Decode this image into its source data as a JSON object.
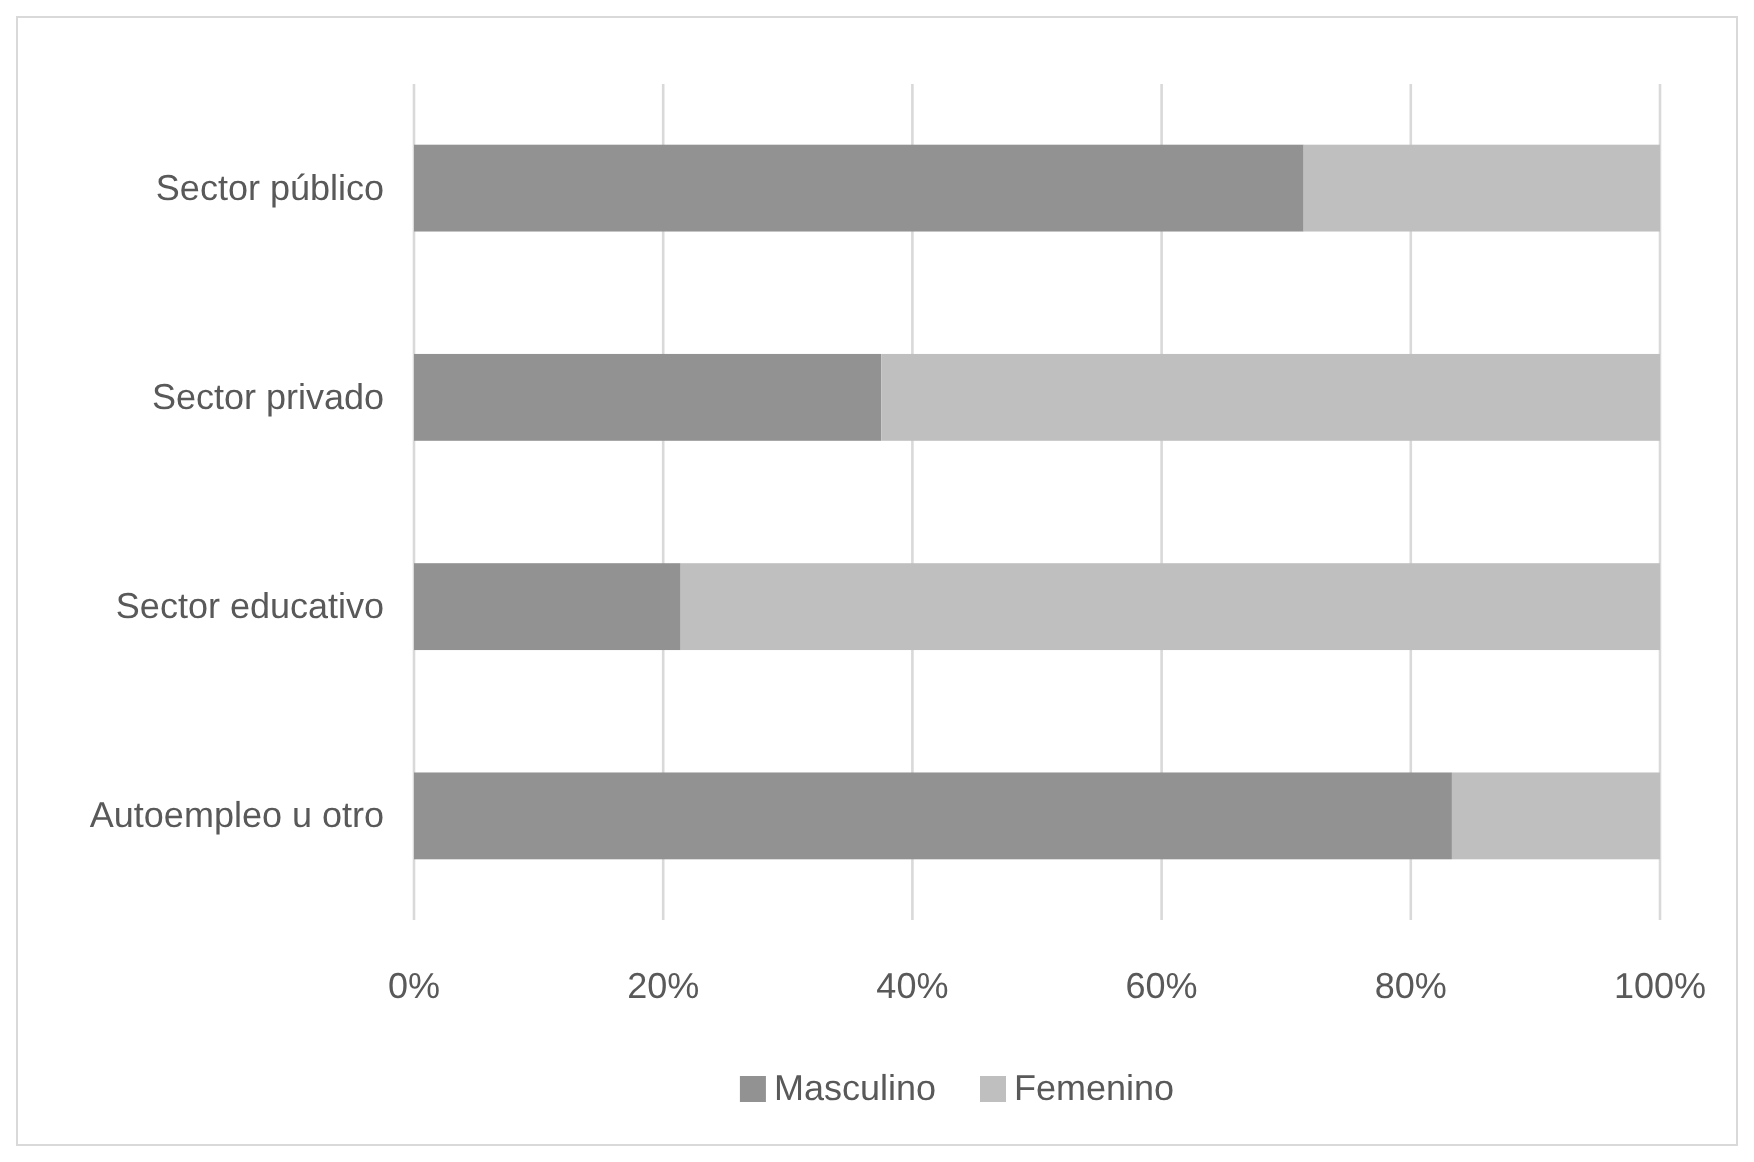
{
  "chart_data": {
    "type": "bar",
    "orientation": "horizontal",
    "stacked": true,
    "categories": [
      "Sector público",
      "Sector privado",
      "Sector educativo",
      "Autoempleo u otro"
    ],
    "series": [
      {
        "name": "Masculino",
        "color": "#929292",
        "values": [
          71.4,
          37.5,
          21.4,
          83.3
        ]
      },
      {
        "name": "Femenino",
        "color": "#bfbfbf",
        "values": [
          28.6,
          62.5,
          78.6,
          16.7
        ]
      }
    ],
    "xlim": [
      0,
      100
    ],
    "xticks": [
      {
        "value": 0,
        "label": "0%"
      },
      {
        "value": 20,
        "label": "20%"
      },
      {
        "value": 40,
        "label": "40%"
      },
      {
        "value": 60,
        "label": "60%"
      },
      {
        "value": 80,
        "label": "80%"
      },
      {
        "value": 100,
        "label": "100%"
      }
    ],
    "grid": "x",
    "legend": "bottom"
  }
}
